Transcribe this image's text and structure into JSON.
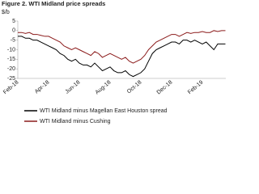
{
  "chart_data": {
    "type": "line",
    "title": "Figure 2. WTI Midland price spreads",
    "y_label": "$/b",
    "categories": [
      "Feb-18",
      null,
      null,
      null,
      null,
      null,
      null,
      null,
      "Apr-18",
      null,
      null,
      null,
      null,
      null,
      null,
      null,
      "Jun-18",
      null,
      null,
      null,
      null,
      null,
      null,
      null,
      "Aug-18",
      null,
      null,
      null,
      null,
      null,
      null,
      null,
      "Oct-18",
      null,
      null,
      null,
      null,
      null,
      null,
      null,
      "Dec-18",
      null,
      null,
      null,
      null,
      null,
      null,
      null,
      "Feb-19",
      null,
      null,
      null,
      null,
      null,
      null
    ],
    "series": [
      {
        "name": "WTI Midland minus Magellan East Houston spread",
        "color": "#000000",
        "values": [
          -3,
          -3,
          -4,
          -4,
          -5,
          -5,
          -6,
          -7,
          -8,
          -9,
          -10,
          -12,
          -13,
          -15,
          -16,
          -15,
          -17,
          -18,
          -18,
          -19,
          -17,
          -19,
          -21,
          -20,
          -19,
          -21,
          -22,
          -22,
          -21,
          -23,
          -24,
          -23,
          -22,
          -20,
          -16,
          -12,
          -10,
          -9,
          -8,
          -7,
          -6,
          -6,
          -7,
          -5,
          -5,
          -6,
          -5,
          -6,
          -7,
          -6,
          -8,
          -10,
          -7,
          -7,
          -7
        ]
      },
      {
        "name": "WTI Midland minus Cushing",
        "color": "#8b1a1a",
        "values": [
          -1,
          -1,
          -1.5,
          -1,
          -2,
          -2,
          -2.5,
          -3,
          -3,
          -4,
          -5,
          -6,
          -8,
          -9,
          -10,
          -9,
          -10,
          -11,
          -12,
          -13,
          -11,
          -12,
          -14,
          -13,
          -12,
          -13,
          -14,
          -15,
          -14,
          -16,
          -17,
          -16,
          -15,
          -13,
          -10,
          -8,
          -6,
          -5,
          -4,
          -3,
          -2,
          -2,
          -3,
          -2,
          -1,
          -1.5,
          -1,
          -1,
          -0.5,
          -1,
          -1,
          0,
          -0.5,
          0,
          0
        ]
      }
    ],
    "ylim": [
      -25,
      5
    ],
    "yticks": [
      5,
      0,
      -5,
      -10,
      -15,
      -20,
      -25
    ]
  }
}
